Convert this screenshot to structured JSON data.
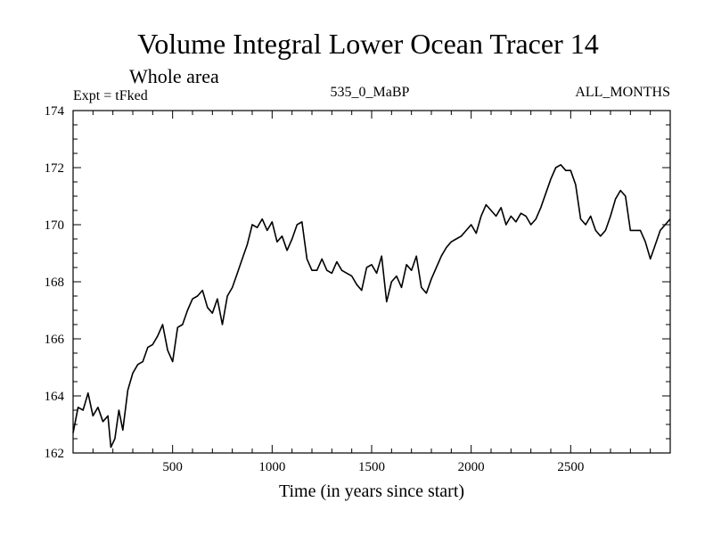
{
  "chart_data": {
    "type": "line",
    "title": "Volume Integral Lower Ocean Tracer 14",
    "subtitle": "Whole area",
    "left_label": "Expt = tFked",
    "center_label": "535_0_MaBP",
    "right_label": "ALL_MONTHS",
    "xlabel": "Time (in years since start)",
    "ylabel": "",
    "xlim": [
      0,
      3000
    ],
    "ylim": [
      162,
      174
    ],
    "x_ticks": [
      500,
      1000,
      1500,
      2000,
      2500
    ],
    "x_tick_labels": [
      "500",
      "1000",
      "1500",
      "2000",
      "2500"
    ],
    "y_ticks": [
      162,
      164,
      166,
      168,
      170,
      172,
      174
    ],
    "y_tick_labels": [
      "162",
      "164",
      "166",
      "168",
      "170",
      "172",
      "174"
    ],
    "grid": false,
    "line_color": "#000000",
    "series": [
      {
        "x": [
          0,
          25,
          50,
          75,
          100,
          125,
          150,
          175,
          190,
          210,
          230,
          250,
          275,
          300,
          325,
          350,
          375,
          400,
          425,
          450,
          475,
          500,
          525,
          550,
          575,
          600,
          625,
          650,
          675,
          700,
          725,
          750,
          775,
          800,
          825,
          850,
          875,
          900,
          925,
          950,
          975,
          1000,
          1025,
          1050,
          1075,
          1100,
          1125,
          1150,
          1175,
          1200,
          1225,
          1250,
          1275,
          1300,
          1325,
          1350,
          1375,
          1400,
          1425,
          1450,
          1475,
          1500,
          1525,
          1550,
          1575,
          1600,
          1625,
          1650,
          1675,
          1700,
          1725,
          1750,
          1775,
          1800,
          1825,
          1850,
          1875,
          1900,
          1925,
          1950,
          1975,
          2000,
          2025,
          2050,
          2075,
          2100,
          2125,
          2150,
          2175,
          2200,
          2225,
          2250,
          2275,
          2300,
          2325,
          2350,
          2375,
          2400,
          2425,
          2450,
          2475,
          2500,
          2525,
          2550,
          2575,
          2600,
          2625,
          2650,
          2675,
          2700,
          2725,
          2750,
          2775,
          2800,
          2825,
          2850,
          2875,
          2900,
          2925,
          2950,
          2975,
          3000
        ],
        "values": [
          162.7,
          163.6,
          163.5,
          164.1,
          163.3,
          163.6,
          163.1,
          163.3,
          162.2,
          162.5,
          163.5,
          162.8,
          164.2,
          164.8,
          165.1,
          165.2,
          165.7,
          165.8,
          166.1,
          166.5,
          165.6,
          165.2,
          166.4,
          166.5,
          167.0,
          167.4,
          167.5,
          167.7,
          167.1,
          166.9,
          167.4,
          166.5,
          167.5,
          167.8,
          168.3,
          168.8,
          169.3,
          170.0,
          169.9,
          170.2,
          169.8,
          170.1,
          169.4,
          169.6,
          169.1,
          169.5,
          170.0,
          170.1,
          168.8,
          168.4,
          168.4,
          168.8,
          168.4,
          168.3,
          168.7,
          168.4,
          168.3,
          168.2,
          167.9,
          167.7,
          168.5,
          168.6,
          168.3,
          168.9,
          167.3,
          168.0,
          168.2,
          167.8,
          168.6,
          168.4,
          168.9,
          167.8,
          167.6,
          168.1,
          168.5,
          168.9,
          169.2,
          169.4,
          169.5,
          169.6,
          169.8,
          170.0,
          169.7,
          170.3,
          170.7,
          170.5,
          170.3,
          170.6,
          170.0,
          170.3,
          170.1,
          170.4,
          170.3,
          170.0,
          170.2,
          170.6,
          171.1,
          171.6,
          172.0,
          172.1,
          171.9,
          171.9,
          171.4,
          170.2,
          170.0,
          170.3,
          169.8,
          169.6,
          169.8,
          170.3,
          170.9,
          171.2,
          171.0,
          169.8,
          169.8,
          169.8,
          169.4,
          168.8,
          169.3,
          169.8,
          170.0,
          170.2
        ]
      }
    ]
  }
}
